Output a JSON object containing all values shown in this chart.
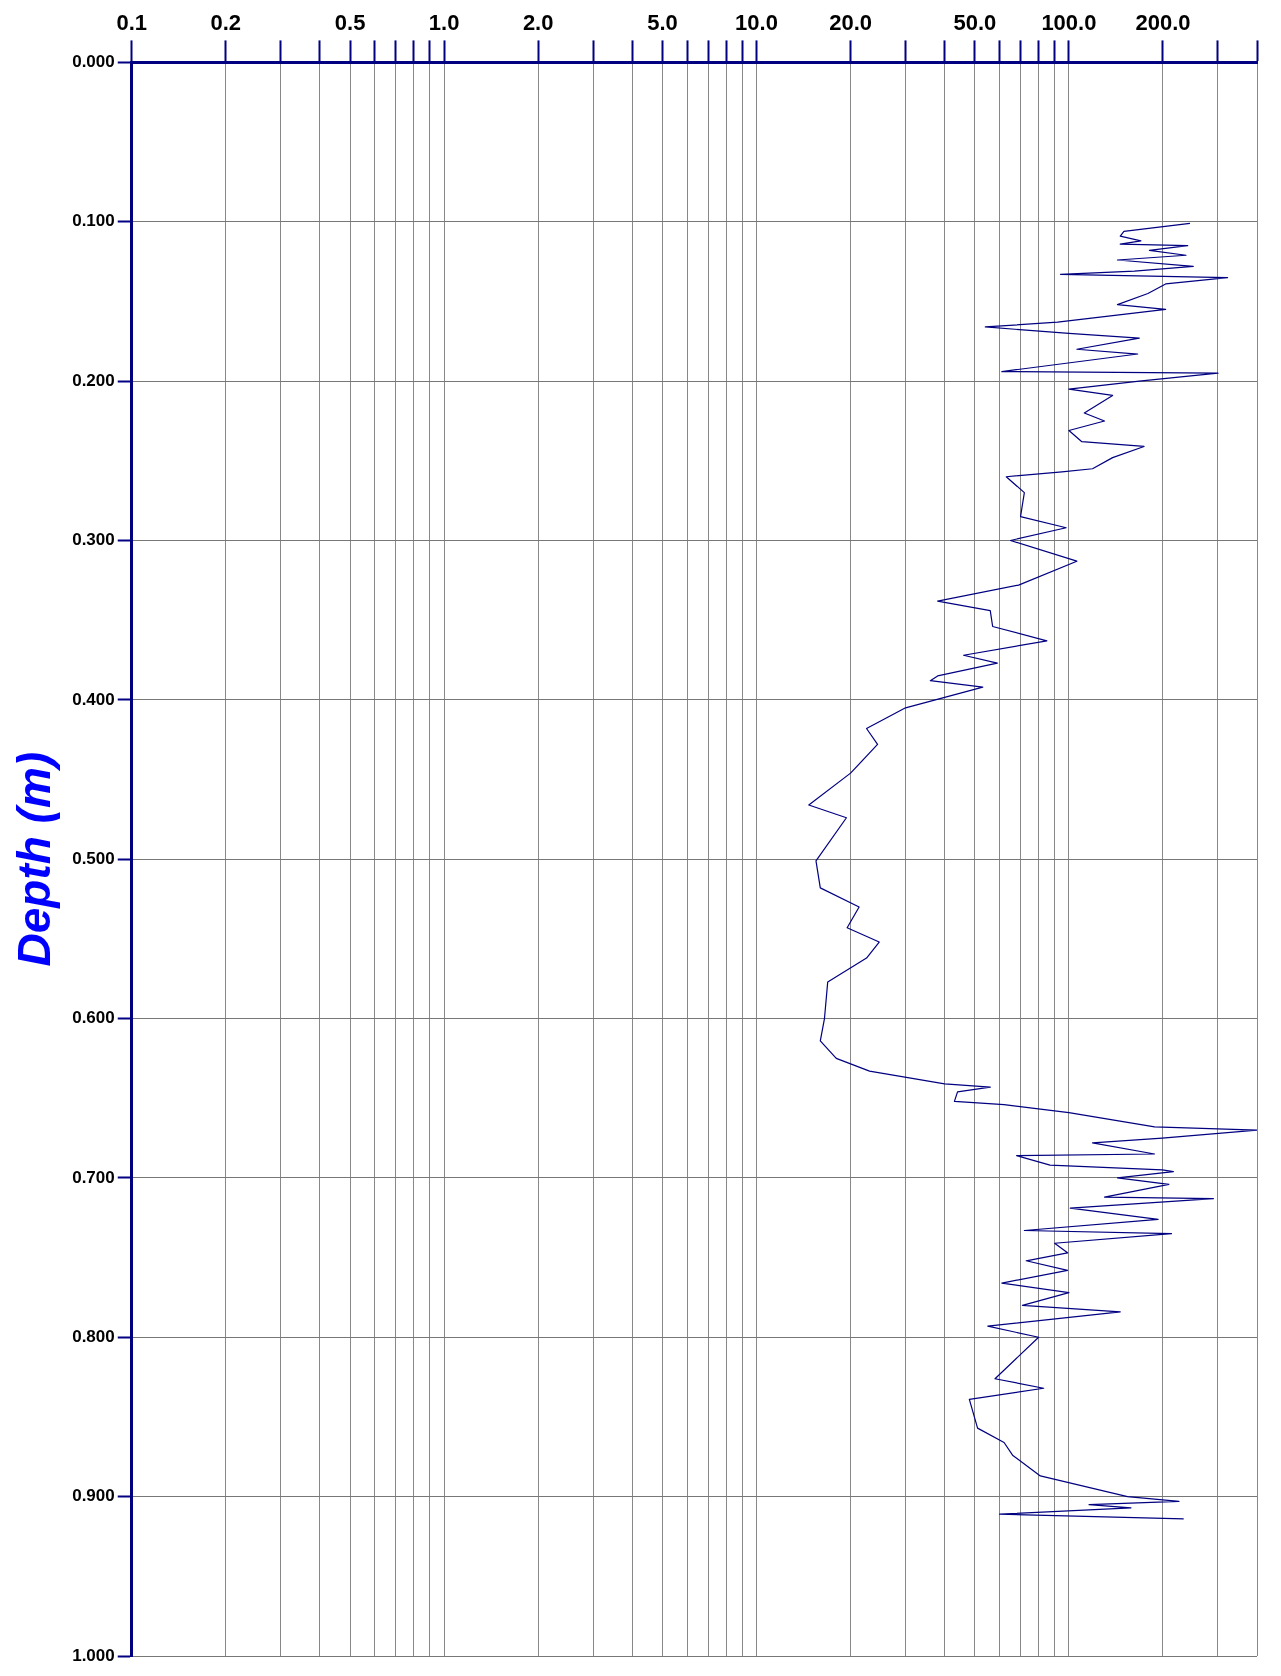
{
  "chart_data": {
    "type": "line",
    "ylabel": "Depth (m)",
    "color": "#000080",
    "log": "x",
    "grid": true,
    "xlim": [
      0.1,
      400
    ],
    "ylim": [
      1,
      0
    ],
    "xticks": [
      0.1,
      0.2,
      {
        "value": 0.3,
        "label": null
      },
      {
        "value": 0.4,
        "label": null
      },
      0.5,
      {
        "value": 0.6,
        "label": null
      },
      {
        "value": 0.7,
        "label": null
      },
      {
        "value": 0.8,
        "label": null
      },
      {
        "value": 0.9,
        "label": null
      },
      {
        "value": 1,
        "label": "1.0"
      },
      {
        "value": 2,
        "label": "2.0"
      },
      {
        "value": 3,
        "label": null
      },
      {
        "value": 4,
        "label": null
      },
      {
        "value": 5,
        "label": "5.0"
      },
      {
        "value": 6,
        "label": null
      },
      {
        "value": 7,
        "label": null
      },
      {
        "value": 8,
        "label": null
      },
      {
        "value": 9,
        "label": null
      },
      {
        "value": 10,
        "label": "10.0"
      },
      {
        "value": 20,
        "label": "20.0"
      },
      {
        "value": 30,
        "label": null
      },
      {
        "value": 40,
        "label": null
      },
      {
        "value": 50,
        "label": "50.0"
      },
      {
        "value": 60,
        "label": null
      },
      {
        "value": 70,
        "label": null
      },
      {
        "value": 80,
        "label": null
      },
      {
        "value": 90,
        "label": null
      },
      {
        "value": 100,
        "label": "100.0"
      },
      {
        "value": 200,
        "label": "200.0"
      },
      {
        "value": 300,
        "label": null
      },
      {
        "value": 400,
        "label": null
      }
    ],
    "yticks": [
      {
        "value": 0,
        "label": "0.000"
      },
      {
        "value": 0.1,
        "label": "0.100"
      },
      {
        "value": 0.2,
        "label": "0.200"
      },
      {
        "value": 0.3,
        "label": "0.300"
      },
      {
        "value": 0.4,
        "label": "0.400"
      },
      {
        "value": 0.5,
        "label": "0.500"
      },
      {
        "value": 0.6,
        "label": "0.600"
      },
      {
        "value": 0.7,
        "label": "0.700"
      },
      {
        "value": 0.8,
        "label": "0.800"
      },
      {
        "value": 0.9,
        "label": "0.900"
      },
      {
        "value": 1,
        "label": "1.000"
      }
    ],
    "x": [
      244,
      150,
      146,
      170,
      146,
      240,
      181,
      237,
      143,
      250,
      162,
      94,
      322,
      204,
      179,
      143,
      204,
      92,
      54,
      73,
      100,
      168,
      106,
      166,
      61,
      300,
      168,
      100,
      138,
      112,
      130,
      100,
      110,
      174,
      138,
      119,
      95,
      63,
      72,
      70,
      98,
      65,
      106,
      69,
      38,
      56,
      57,
      85,
      46,
      59,
      38,
      36,
      53,
      30,
      22.5,
      24.4,
      20,
      14.7,
      19.4,
      15.5,
      16,
      21.3,
      19.5,
      24.7,
      22.5,
      16.9,
      16.5,
      16,
      18,
      23,
      40,
      56,
      44,
      43,
      62,
      100,
      188,
      400,
      199,
      119,
      188,
      68,
      87,
      199,
      216,
      143,
      209,
      130,
      290,
      101,
      193,
      72,
      213,
      90,
      99,
      73,
      99,
      61,
      100,
      71,
      146,
      55,
      80,
      58,
      83,
      48,
      51,
      62,
      66,
      81,
      154,
      225,
      116,
      158,
      60,
      233
    ],
    "values": [
      0.101,
      0.106,
      0.109,
      0.112,
      0.114,
      0.115,
      0.118,
      0.121,
      0.124,
      0.128,
      0.131,
      0.133,
      0.135,
      0.139,
      0.145,
      0.152,
      0.155,
      0.163,
      0.166,
      0.168,
      0.17,
      0.173,
      0.18,
      0.183,
      0.194,
      0.195,
      0.2,
      0.205,
      0.209,
      0.22,
      0.225,
      0.231,
      0.238,
      0.241,
      0.248,
      0.255,
      0.257,
      0.26,
      0.27,
      0.285,
      0.292,
      0.3,
      0.313,
      0.328,
      0.338,
      0.344,
      0.354,
      0.363,
      0.372,
      0.377,
      0.385,
      0.388,
      0.392,
      0.405,
      0.418,
      0.428,
      0.446,
      0.466,
      0.474,
      0.501,
      0.518,
      0.53,
      0.543,
      0.552,
      0.562,
      0.577,
      0.6,
      0.614,
      0.625,
      0.633,
      0.641,
      0.643,
      0.646,
      0.652,
      0.654,
      0.659,
      0.668,
      0.67,
      0.675,
      0.678,
      0.685,
      0.686,
      0.692,
      0.695,
      0.696,
      0.7,
      0.704,
      0.712,
      0.713,
      0.719,
      0.726,
      0.733,
      0.735,
      0.741,
      0.747,
      0.752,
      0.758,
      0.766,
      0.772,
      0.78,
      0.784,
      0.793,
      0.8,
      0.826,
      0.832,
      0.839,
      0.857,
      0.866,
      0.874,
      0.887,
      0.9,
      0.903,
      0.905,
      0.907,
      0.911,
      0.914
    ]
  }
}
